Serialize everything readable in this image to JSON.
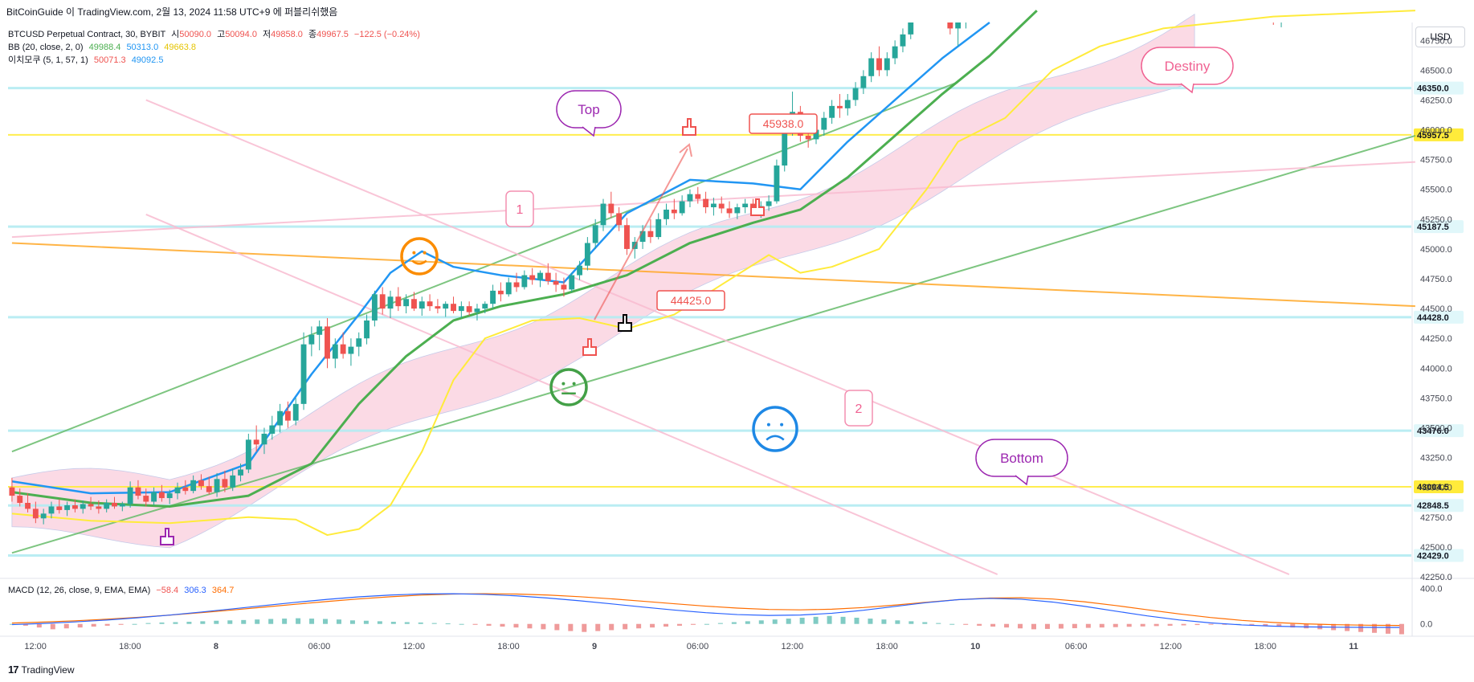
{
  "attribution": "BitCoinGuide 이 TradingView.com, 2월 13, 2024 11:58 UTC+9 에 퍼블리쉬했음",
  "header": {
    "symbol": "BTCUSD Perpetual Contract, 30, BYBIT",
    "o_label": "시",
    "o_value": "50090.0",
    "h_label": "고",
    "h_value": "50094.0",
    "l_label": "저",
    "l_value": "49858.0",
    "c_label": "종",
    "c_value": "49967.5",
    "change": "−122.5 (−0.24%)",
    "bb_label": "BB (20, close, 2, 0)",
    "bb_basis": "49988.4",
    "bb_upper": "50313.0",
    "bb_lower": "49663.8",
    "ichimoku_label": "이치모쿠 (5, 1, 57, 1)",
    "ichi_a": "50071.3",
    "ichi_b": "49092.5",
    "macd_label": "MACD (12, 26, close, 9, EMA, EMA)",
    "macd_hist": "−58.4",
    "macd_line": "306.3",
    "macd_signal": "364.7"
  },
  "currency": "USD",
  "footer": {
    "brand": "TradingView",
    "logo": "17"
  },
  "colors": {
    "up": "#26a69a",
    "down": "#ef5350",
    "bb_basis": "#4caf50",
    "bb_upper": "#2196f3",
    "lagging": "#ffeb3b",
    "cloud": "#f8bbd0",
    "hline_cyan": "#b2ebf2",
    "hline_yellow": "#ffeb3b",
    "trend_green": "#66bb6a",
    "trend_pink": "#f8bbd0",
    "trend_orange": "#ffa726",
    "macd_line": "#2962ff",
    "macd_signal": "#ff6d00"
  },
  "chart_data": {
    "type": "candlestick",
    "ylim": [
      42250,
      46900
    ],
    "y_ticks": [
      "46750.0",
      "46500.0",
      "46250.0",
      "46000.0",
      "45750.0",
      "45500.0",
      "45250.0",
      "45000.0",
      "44750.0",
      "44500.0",
      "44250.0",
      "44000.0",
      "43750.0",
      "43500.0",
      "43250.0",
      "43000.0",
      "42750.0",
      "42500.0",
      "42250.0"
    ],
    "x_ticks": [
      {
        "label": "12:00",
        "bar": 3
      },
      {
        "label": "18:00",
        "bar": 15
      },
      {
        "label": "8",
        "bar": 27
      },
      {
        "label": "06:00",
        "bar": 39
      },
      {
        "label": "12:00",
        "bar": 51
      },
      {
        "label": "18:00",
        "bar": 63
      },
      {
        "label": "9",
        "bar": 75
      },
      {
        "label": "06:00",
        "bar": 87
      },
      {
        "label": "12:00",
        "bar": 99
      },
      {
        "label": "18:00",
        "bar": 111
      },
      {
        "label": "10",
        "bar": 123
      },
      {
        "label": "06:00",
        "bar": 135
      },
      {
        "label": "12:00",
        "bar": 147
      },
      {
        "label": "18:00",
        "bar": 159
      },
      {
        "label": "11",
        "bar": 171
      }
    ],
    "bar_count": 178,
    "candles": [
      [
        43000,
        43080,
        42880,
        42930
      ],
      [
        42930,
        42990,
        42840,
        42870
      ],
      [
        42870,
        42950,
        42790,
        42820
      ],
      [
        42820,
        42880,
        42700,
        42740
      ],
      [
        42740,
        42820,
        42690,
        42780
      ],
      [
        42780,
        42880,
        42740,
        42840
      ],
      [
        42840,
        42900,
        42780,
        42810
      ],
      [
        42810,
        42880,
        42760,
        42850
      ],
      [
        42850,
        42900,
        42790,
        42820
      ],
      [
        42820,
        42890,
        42780,
        42860
      ],
      [
        42860,
        42920,
        42810,
        42840
      ],
      [
        42840,
        42890,
        42780,
        42820
      ],
      [
        42820,
        42900,
        42790,
        42870
      ],
      [
        42870,
        42920,
        42820,
        42840
      ],
      [
        42840,
        42880,
        42800,
        42860
      ],
      [
        42860,
        43050,
        42830,
        43000
      ],
      [
        43000,
        43060,
        42900,
        42930
      ],
      [
        42930,
        42990,
        42840,
        42880
      ],
      [
        42880,
        43000,
        42850,
        42960
      ],
      [
        42960,
        43020,
        42880,
        42910
      ],
      [
        42910,
        42980,
        42860,
        42950
      ],
      [
        42950,
        43040,
        42900,
        43000
      ],
      [
        43000,
        43060,
        42940,
        42970
      ],
      [
        42970,
        43100,
        42950,
        43060
      ],
      [
        43060,
        43110,
        42980,
        43010
      ],
      [
        43010,
        43090,
        42940,
        42960
      ],
      [
        42960,
        43120,
        42920,
        43070
      ],
      [
        43070,
        43140,
        42960,
        43000
      ],
      [
        43000,
        43160,
        42970,
        43100
      ],
      [
        43100,
        43200,
        43050,
        43150
      ],
      [
        43150,
        43450,
        43120,
        43400
      ],
      [
        43400,
        43520,
        43300,
        43360
      ],
      [
        43360,
        43500,
        43280,
        43450
      ],
      [
        43450,
        43600,
        43400,
        43520
      ],
      [
        43520,
        43700,
        43460,
        43640
      ],
      [
        43640,
        43720,
        43500,
        43560
      ],
      [
        43560,
        43750,
        43520,
        43700
      ],
      [
        43700,
        44300,
        43650,
        44200
      ],
      [
        44200,
        44350,
        44100,
        44280
      ],
      [
        44280,
        44400,
        44150,
        44350
      ],
      [
        44350,
        44420,
        44000,
        44080
      ],
      [
        44080,
        44250,
        44000,
        44200
      ],
      [
        44200,
        44300,
        44080,
        44120
      ],
      [
        44120,
        44250,
        44020,
        44180
      ],
      [
        44180,
        44300,
        44100,
        44250
      ],
      [
        44250,
        44450,
        44200,
        44400
      ],
      [
        44400,
        44650,
        44350,
        44620
      ],
      [
        44620,
        44680,
        44450,
        44500
      ],
      [
        44500,
        44650,
        44420,
        44600
      ],
      [
        44600,
        44680,
        44480,
        44520
      ],
      [
        44520,
        44620,
        44460,
        44580
      ],
      [
        44580,
        44640,
        44480,
        44500
      ],
      [
        44500,
        44600,
        44440,
        44560
      ],
      [
        44560,
        44620,
        44480,
        44520
      ],
      [
        44520,
        44580,
        44460,
        44500
      ],
      [
        44500,
        44560,
        44430,
        44540
      ],
      [
        44540,
        44600,
        44460,
        44480
      ],
      [
        44480,
        44560,
        44420,
        44520
      ],
      [
        44520,
        44560,
        44440,
        44470
      ],
      [
        44470,
        44540,
        44400,
        44500
      ],
      [
        44500,
        44560,
        44460,
        44540
      ],
      [
        44540,
        44700,
        44500,
        44650
      ],
      [
        44650,
        44720,
        44560,
        44620
      ],
      [
        44620,
        44760,
        44600,
        44720
      ],
      [
        44720,
        44800,
        44640,
        44680
      ],
      [
        44680,
        44820,
        44660,
        44780
      ],
      [
        44780,
        44840,
        44700,
        44740
      ],
      [
        44740,
        44820,
        44680,
        44800
      ],
      [
        44800,
        44880,
        44700,
        44730
      ],
      [
        44730,
        44800,
        44640,
        44700
      ],
      [
        44700,
        44760,
        44600,
        44660
      ],
      [
        44660,
        44800,
        44640,
        44780
      ],
      [
        44780,
        44900,
        44740,
        44860
      ],
      [
        44860,
        45100,
        44820,
        45050
      ],
      [
        45050,
        45250,
        45000,
        45200
      ],
      [
        45200,
        45420,
        45150,
        45380
      ],
      [
        45380,
        45480,
        45260,
        45300
      ],
      [
        45300,
        45350,
        45150,
        45200
      ],
      [
        45200,
        45260,
        44950,
        45000
      ],
      [
        45000,
        45100,
        44920,
        45060
      ],
      [
        45060,
        45200,
        45000,
        45150
      ],
      [
        45150,
        45250,
        45050,
        45100
      ],
      [
        45100,
        45300,
        45080,
        45250
      ],
      [
        45250,
        45380,
        45200,
        45330
      ],
      [
        45330,
        45420,
        45250,
        45300
      ],
      [
        45300,
        45450,
        45280,
        45400
      ],
      [
        45400,
        45500,
        45350,
        45460
      ],
      [
        45460,
        45520,
        45380,
        45420
      ],
      [
        45420,
        45480,
        45300,
        45350
      ],
      [
        45350,
        45430,
        45280,
        45380
      ],
      [
        45380,
        45440,
        45300,
        45340
      ],
      [
        45340,
        45400,
        45260,
        45300
      ],
      [
        45300,
        45380,
        45250,
        45350
      ],
      [
        45350,
        45420,
        45300,
        45380
      ],
      [
        45380,
        45420,
        45280,
        45320
      ],
      [
        45320,
        45400,
        45260,
        45360
      ],
      [
        45360,
        45450,
        45320,
        45400
      ],
      [
        45400,
        45750,
        45380,
        45700
      ],
      [
        45700,
        46100,
        45650,
        46050
      ],
      [
        46050,
        46320,
        45950,
        46150
      ],
      [
        46150,
        46200,
        45900,
        45950
      ],
      [
        45950,
        46050,
        45850,
        45920
      ],
      [
        45920,
        46050,
        45880,
        46000
      ],
      [
        46000,
        46150,
        45950,
        46100
      ],
      [
        46100,
        46250,
        46050,
        46200
      ],
      [
        46200,
        46300,
        46100,
        46180
      ],
      [
        46180,
        46300,
        46120,
        46250
      ],
      [
        46250,
        46400,
        46200,
        46350
      ],
      [
        46350,
        46500,
        46300,
        46450
      ],
      [
        46450,
        46650,
        46400,
        46600
      ],
      [
        46600,
        46700,
        46450,
        46500
      ],
      [
        46500,
        46650,
        46450,
        46600
      ],
      [
        46600,
        46750,
        46550,
        46700
      ],
      [
        46700,
        46850,
        46650,
        46800
      ],
      [
        46800,
        47000,
        46760,
        46950
      ],
      [
        46950,
        47100,
        46900,
        47050
      ],
      [
        47050,
        47200,
        47000,
        47150
      ],
      [
        47150,
        47250,
        47050,
        47100
      ],
      [
        47100,
        47200,
        46950,
        47000
      ],
      [
        47000,
        47100,
        46800,
        46850
      ],
      [
        46850,
        46950,
        46700,
        46900
      ],
      [
        46900,
        47100,
        46850,
        47050
      ],
      [
        47050,
        47150,
        46950,
        47000
      ]
    ],
    "tail_candles": [
      [
        47000,
        47100,
        46880,
        46930
      ],
      [
        46930,
        47020,
        46860,
        46960
      ]
    ],
    "bb_upper": [
      [
        0,
        43050
      ],
      [
        10,
        42950
      ],
      [
        20,
        42960
      ],
      [
        30,
        43200
      ],
      [
        38,
        43950
      ],
      [
        44,
        44450
      ],
      [
        48,
        44800
      ],
      [
        52,
        44980
      ],
      [
        56,
        44850
      ],
      [
        62,
        44780
      ],
      [
        70,
        44720
      ],
      [
        78,
        45300
      ],
      [
        86,
        45580
      ],
      [
        94,
        45550
      ],
      [
        100,
        45500
      ],
      [
        106,
        45900
      ],
      [
        112,
        46250
      ],
      [
        118,
        46600
      ],
      [
        124,
        46900
      ]
    ],
    "bb_basis": [
      [
        0,
        42960
      ],
      [
        10,
        42870
      ],
      [
        20,
        42840
      ],
      [
        30,
        42930
      ],
      [
        38,
        43200
      ],
      [
        44,
        43700
      ],
      [
        50,
        44100
      ],
      [
        56,
        44400
      ],
      [
        62,
        44520
      ],
      [
        70,
        44620
      ],
      [
        78,
        44780
      ],
      [
        86,
        45050
      ],
      [
        94,
        45220
      ],
      [
        100,
        45330
      ],
      [
        106,
        45600
      ],
      [
        112,
        45950
      ],
      [
        118,
        46300
      ],
      [
        124,
        46620
      ],
      [
        130,
        47000
      ]
    ],
    "lagging": [
      [
        0,
        42780
      ],
      [
        10,
        42720
      ],
      [
        20,
        42700
      ],
      [
        30,
        42750
      ],
      [
        36,
        42730
      ],
      [
        40,
        42600
      ],
      [
        44,
        42650
      ],
      [
        48,
        42850
      ],
      [
        52,
        43300
      ],
      [
        56,
        43900
      ],
      [
        60,
        44250
      ],
      [
        66,
        44400
      ],
      [
        72,
        44420
      ],
      [
        78,
        44330
      ],
      [
        84,
        44450
      ],
      [
        90,
        44700
      ],
      [
        96,
        44950
      ],
      [
        100,
        44800
      ],
      [
        104,
        44850
      ],
      [
        110,
        45000
      ],
      [
        116,
        45500
      ],
      [
        120,
        45900
      ],
      [
        126,
        46100
      ],
      [
        132,
        46500
      ],
      [
        138,
        46700
      ],
      [
        146,
        46850
      ],
      [
        160,
        46950
      ],
      [
        178,
        47000
      ]
    ],
    "hlines": [
      {
        "value": 46350.0,
        "label": "46350.0",
        "kind": "cyan"
      },
      {
        "value": 45957.5,
        "label": "45957.5",
        "kind": "yellow"
      },
      {
        "value": 45187.5,
        "label": "45187.5",
        "kind": "cyan"
      },
      {
        "value": 44428.0,
        "label": "44428.0",
        "kind": "cyan"
      },
      {
        "value": 43476.0,
        "label": "43476.0",
        "kind": "cyan"
      },
      {
        "value": 43004.5,
        "label": "43004.5",
        "kind": "yellow"
      },
      {
        "value": 42848.5,
        "label": "42848.5",
        "kind": "cyan"
      },
      {
        "value": 42429.0,
        "label": "42429.0",
        "kind": "cyan"
      }
    ],
    "annotations": {
      "top": "Top",
      "bottom": "Bottom",
      "destiny": "Destiny",
      "one": "1",
      "two": "2",
      "callout_1": "44425.0",
      "callout_2": "45938.0"
    },
    "macd": {
      "ylim": [
        -120,
        440
      ],
      "y_ticks": [
        "400.0",
        "0.0"
      ],
      "hist": [
        0,
        -10,
        -20,
        -30,
        -25,
        -20,
        -15,
        -10,
        -5,
        0,
        5,
        8,
        10,
        12,
        15,
        18,
        20,
        22,
        25,
        28,
        30,
        32,
        30,
        28,
        25,
        20,
        18,
        15,
        12,
        10,
        8,
        5,
        3,
        0,
        -5,
        -10,
        -15,
        -20,
        -25,
        -30,
        -35,
        -40,
        -45,
        -40,
        -35,
        -30,
        -25,
        -20,
        -15,
        -10,
        -5,
        0,
        5,
        10,
        15,
        20,
        25,
        30,
        35,
        40,
        45,
        40,
        35,
        30,
        25,
        20,
        15,
        10,
        5,
        0,
        -5,
        -10,
        -15,
        -20,
        -25,
        -30,
        -28,
        -26,
        -24,
        -22,
        -20,
        -18,
        -16,
        -14,
        -12,
        -10,
        -8,
        -6,
        -4,
        -2,
        0,
        -5,
        -10,
        -15,
        -20,
        -25,
        -30,
        -35,
        -40,
        -45,
        -50,
        -55,
        -58
      ]
    }
  }
}
